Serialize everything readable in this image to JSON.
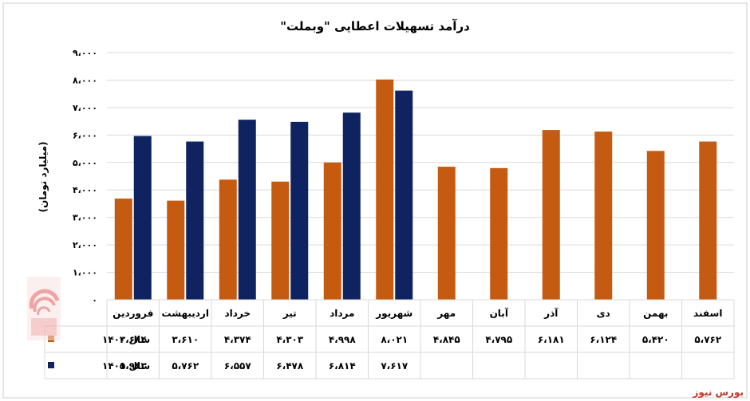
{
  "source": "بورس نیوز",
  "colors": {
    "series_1400": "#C55A11",
    "series_1401": "#0F2360",
    "grid": "#d9d9d9",
    "text": "#000000",
    "source": "#c0392b",
    "logo": "#e05a5a"
  },
  "chart_data": {
    "type": "bar",
    "title": "درآمد تسهیلات اعطایی \"وبملت\"",
    "ylabel": "(میلیارد تومان)",
    "xlabel": "",
    "ylim": [
      0,
      9000
    ],
    "yticks": [
      "۰",
      "۱،۰۰۰",
      "۲،۰۰۰",
      "۳،۰۰۰",
      "۴،۰۰۰",
      "۵،۰۰۰",
      "۶،۰۰۰",
      "۷،۰۰۰",
      "۸،۰۰۰",
      "۹،۰۰۰"
    ],
    "grid": true,
    "legend": "table-left",
    "categories": [
      "فروردین",
      "اردیبهشت",
      "خرداد",
      "تیر",
      "مرداد",
      "شهریور",
      "مهر",
      "آبان",
      "آذر",
      "دی",
      "بهمن",
      "اسفند"
    ],
    "series": [
      {
        "name": "سال ۱۴۰۰",
        "values": [
          3684,
          3610,
          4374,
          4303,
          4998,
          8021,
          4845,
          4795,
          6181,
          6124,
          5420,
          5762
        ],
        "labels": [
          "۳،۶۸۴",
          "۳،۶۱۰",
          "۴،۳۷۴",
          "۴،۳۰۳",
          "۴،۹۹۸",
          "۸،۰۲۱",
          "۴،۸۴۵",
          "۴،۷۹۵",
          "۶،۱۸۱",
          "۶،۱۲۴",
          "۵،۴۲۰",
          "۵،۷۶۲"
        ]
      },
      {
        "name": "سال ۱۴۰۱",
        "values": [
          5963,
          5762,
          6557,
          6478,
          6814,
          7617,
          null,
          null,
          null,
          null,
          null,
          null
        ],
        "labels": [
          "۵،۹۶۳",
          "۵،۷۶۲",
          "۶،۵۵۷",
          "۶،۴۷۸",
          "۶،۸۱۴",
          "۷،۶۱۷",
          "",
          "",
          "",
          "",
          "",
          ""
        ]
      }
    ]
  }
}
